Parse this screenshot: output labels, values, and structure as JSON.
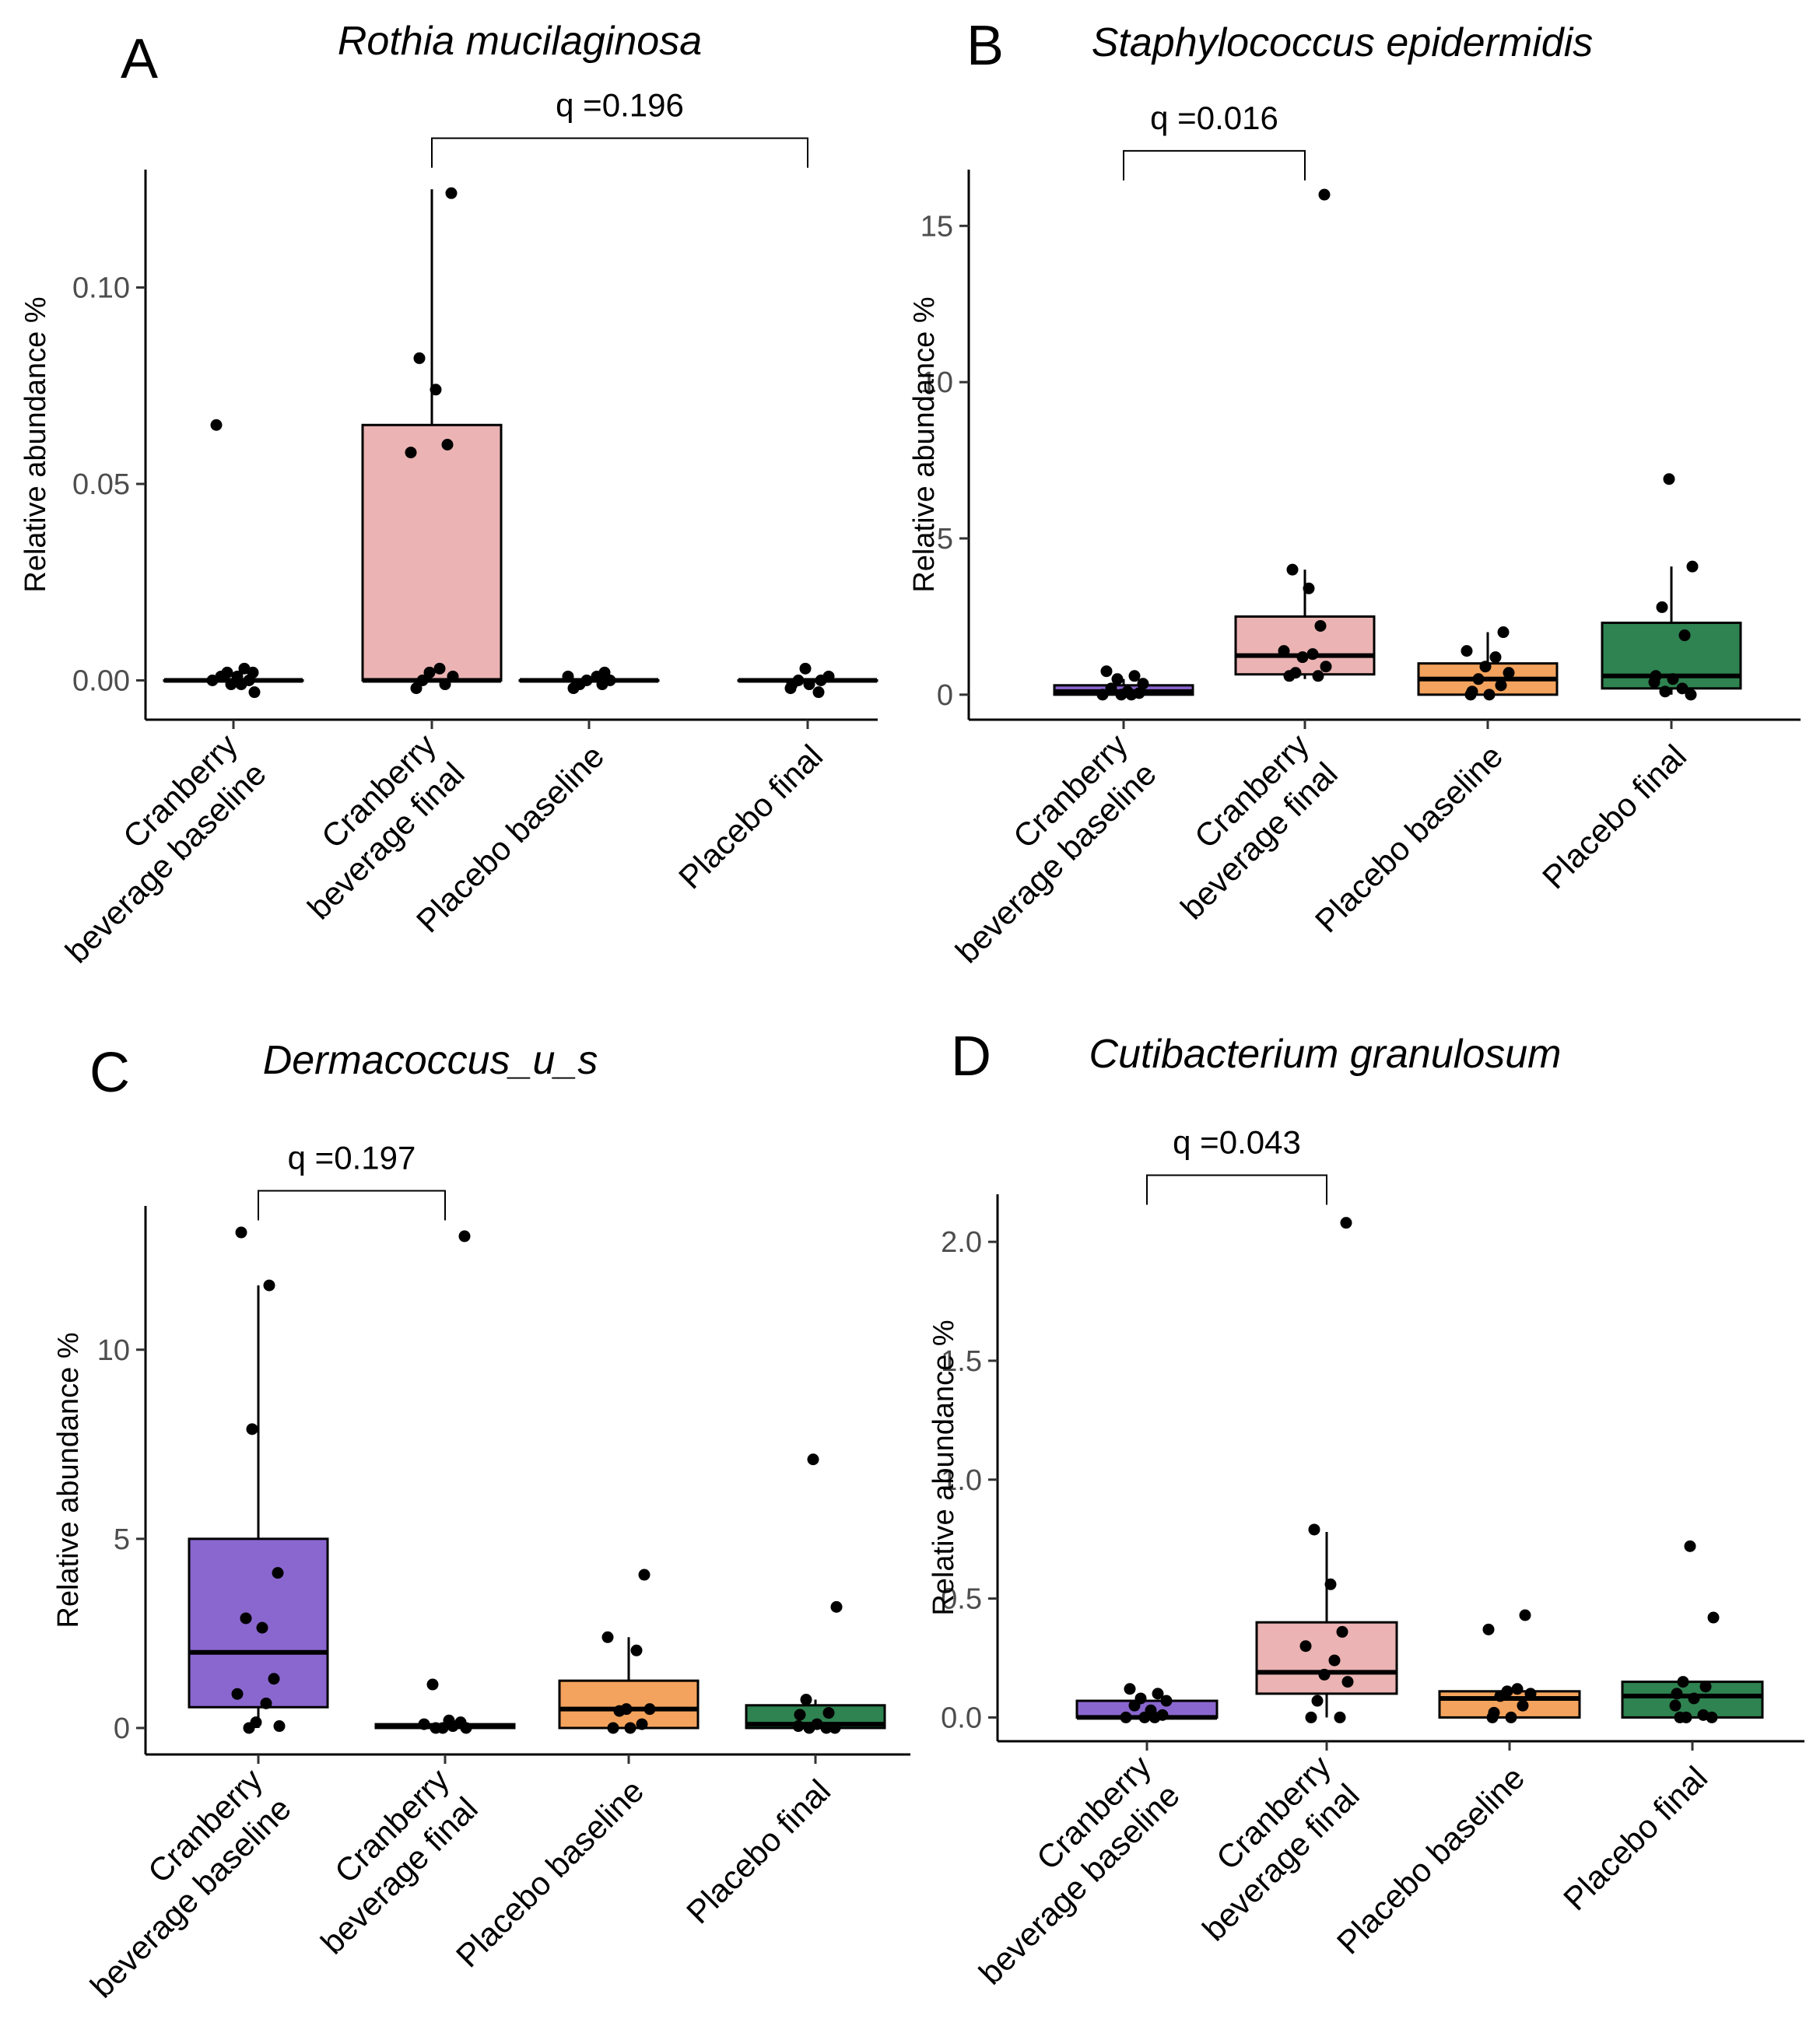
{
  "colors": {
    "cranberry_baseline": "#8a67cf",
    "cranberry_final": "#ebb3b3",
    "placebo_baseline": "#f3a35d",
    "placebo_final": "#2e8350",
    "point": "#000000",
    "axis": "#000000"
  },
  "chart_data": [
    {
      "panel": "A",
      "type": "box",
      "title": "Rothia mucilaginosa",
      "ylabel": "Relative abundance %",
      "xlabel": "",
      "ylim": [
        -0.01,
        0.13
      ],
      "yticks": [
        0.0,
        0.05,
        0.1
      ],
      "ytick_labels": [
        "0.00",
        "0.05",
        "0.10"
      ],
      "categories": [
        [
          "Cranberry",
          "beverage baseline"
        ],
        [
          "Cranberry",
          "beverage final"
        ],
        [
          "Placebo baseline"
        ],
        [
          "Placebo final"
        ]
      ],
      "groups": [
        {
          "q1": 0.0,
          "median": 0.0,
          "q3": 0.0,
          "whisker_low": 0.0,
          "whisker_high": 0.0,
          "points": [
            0.065,
            0.003,
            0.002,
            0.002,
            0.001,
            0.001,
            0.0,
            0.0,
            -0.001,
            -0.001,
            -0.003
          ]
        },
        {
          "q1": 0.0,
          "median": 0.0,
          "q3": 0.065,
          "whisker_low": 0.0,
          "whisker_high": 0.125,
          "points": [
            0.124,
            0.082,
            0.074,
            0.06,
            0.058,
            0.003,
            0.002,
            0.001,
            0.0,
            -0.001,
            -0.002
          ]
        },
        {
          "q1": 0.0,
          "median": 0.0,
          "q3": 0.0,
          "whisker_low": 0.0,
          "whisker_high": 0.0,
          "points": [
            0.002,
            0.001,
            0.001,
            0.0,
            0.0,
            -0.001,
            -0.001,
            -0.002
          ]
        },
        {
          "q1": 0.0,
          "median": 0.0,
          "q3": 0.0,
          "whisker_low": 0.0,
          "whisker_high": 0.0,
          "points": [
            0.003,
            0.001,
            0.0,
            0.0,
            -0.001,
            -0.001,
            -0.002,
            -0.003
          ]
        }
      ],
      "comparison": {
        "from": 1,
        "to": 3,
        "label": "q =0.196",
        "y": 0.138
      }
    },
    {
      "panel": "B",
      "type": "box",
      "title": "Staphylococcus epidermidis",
      "ylabel": "Relative abundance %",
      "xlabel": "",
      "ylim": [
        -0.8,
        16.8
      ],
      "yticks": [
        0,
        5,
        10,
        15
      ],
      "ytick_labels": [
        "0",
        "5",
        "10",
        "15"
      ],
      "categories": [
        [
          "Cranberry",
          "beverage baseline"
        ],
        [
          "Cranberry",
          "beverage final"
        ],
        [
          "Placebo baseline"
        ],
        [
          "Placebo final"
        ]
      ],
      "groups": [
        {
          "q1": 0.0,
          "median": 0.1,
          "q3": 0.3,
          "whisker_low": 0.0,
          "whisker_high": 0.5,
          "points": [
            0.75,
            0.6,
            0.5,
            0.35,
            0.2,
            0.1,
            0.05,
            0.0,
            0.0,
            0.0
          ]
        },
        {
          "q1": 0.65,
          "median": 1.25,
          "q3": 2.5,
          "whisker_low": 0.5,
          "whisker_high": 4.0,
          "points": [
            16.0,
            4.0,
            3.4,
            2.2,
            1.4,
            1.3,
            1.2,
            0.9,
            0.7,
            0.6,
            0.6
          ]
        },
        {
          "q1": 0.0,
          "median": 0.5,
          "q3": 1.0,
          "whisker_low": 0.0,
          "whisker_high": 2.0,
          "points": [
            2.0,
            1.4,
            1.2,
            0.9,
            0.7,
            0.5,
            0.3,
            0.1,
            0.0,
            0.0
          ]
        },
        {
          "q1": 0.2,
          "median": 0.6,
          "q3": 2.3,
          "whisker_low": 0.0,
          "whisker_high": 4.1,
          "points": [
            6.9,
            4.1,
            2.8,
            1.9,
            0.6,
            0.5,
            0.4,
            0.2,
            0.1,
            0.0
          ]
        }
      ],
      "comparison": {
        "from": 0,
        "to": 1,
        "label": "q =0.016",
        "y": 17.4
      }
    },
    {
      "panel": "C",
      "type": "box",
      "title": "Dermacoccus_u_s",
      "ylabel": "Relative abundance %",
      "xlabel": "",
      "ylim": [
        -0.7,
        13.8
      ],
      "yticks": [
        0,
        5,
        10
      ],
      "ytick_labels": [
        "0",
        "5",
        "10"
      ],
      "categories": [
        [
          "Cranberry",
          "beverage baseline"
        ],
        [
          "Cranberry",
          "beverage final"
        ],
        [
          "Placebo baseline"
        ],
        [
          "Placebo final"
        ]
      ],
      "groups": [
        {
          "q1": 0.55,
          "median": 2.0,
          "q3": 5.0,
          "whisker_low": 0.0,
          "whisker_high": 11.7,
          "points": [
            13.1,
            11.7,
            7.9,
            4.1,
            2.9,
            2.65,
            1.3,
            0.9,
            0.65,
            0.15,
            0.05,
            0.0
          ]
        },
        {
          "q1": 0.0,
          "median": 0.05,
          "q3": 0.1,
          "whisker_low": 0.0,
          "whisker_high": 0.15,
          "points": [
            13.0,
            1.15,
            0.2,
            0.15,
            0.1,
            0.05,
            0.0,
            0.0,
            0.0
          ]
        },
        {
          "q1": 0.0,
          "median": 0.5,
          "q3": 1.25,
          "whisker_low": 0.0,
          "whisker_high": 2.4,
          "points": [
            4.05,
            2.4,
            2.05,
            0.5,
            0.5,
            0.45,
            0.1,
            0.0,
            0.0
          ]
        },
        {
          "q1": 0.0,
          "median": 0.1,
          "q3": 0.6,
          "whisker_low": 0.0,
          "whisker_high": 0.75,
          "points": [
            7.1,
            3.2,
            0.75,
            0.4,
            0.35,
            0.1,
            0.05,
            0.0,
            0.0,
            0.0
          ]
        }
      ],
      "comparison": {
        "from": 0,
        "to": 1,
        "label": "q =0.197",
        "y": 14.2
      }
    },
    {
      "panel": "D",
      "type": "box",
      "title": "Cutibacterium granulosum",
      "ylabel": "Relative abundance %",
      "xlabel": "",
      "ylim": [
        -0.1,
        2.2
      ],
      "yticks": [
        0.0,
        0.5,
        1.0,
        1.5,
        2.0
      ],
      "ytick_labels": [
        "0.0",
        "0.5",
        "1.0",
        "1.5",
        "2.0"
      ],
      "categories": [
        [
          "Cranberry",
          "beverage baseline"
        ],
        [
          "Cranberry",
          "beverage final"
        ],
        [
          "Placebo baseline"
        ],
        [
          "Placebo final"
        ]
      ],
      "groups": [
        {
          "q1": 0.0,
          "median": 0.0,
          "q3": 0.07,
          "whisker_low": 0.0,
          "whisker_high": 0.07,
          "points": [
            0.12,
            0.1,
            0.08,
            0.07,
            0.05,
            0.03,
            0.01,
            0.0,
            0.0,
            0.0
          ]
        },
        {
          "q1": 0.1,
          "median": 0.19,
          "q3": 0.4,
          "whisker_low": 0.0,
          "whisker_high": 0.78,
          "points": [
            2.08,
            0.79,
            0.56,
            0.36,
            0.3,
            0.24,
            0.18,
            0.15,
            0.07,
            0.0,
            0.0
          ]
        },
        {
          "q1": 0.0,
          "median": 0.08,
          "q3": 0.11,
          "whisker_low": 0.0,
          "whisker_high": 0.11,
          "points": [
            0.43,
            0.37,
            0.12,
            0.11,
            0.1,
            0.09,
            0.05,
            0.02,
            0.0,
            0.0
          ]
        },
        {
          "q1": 0.0,
          "median": 0.09,
          "q3": 0.15,
          "whisker_low": 0.0,
          "whisker_high": 0.15,
          "points": [
            0.72,
            0.42,
            0.15,
            0.13,
            0.1,
            0.08,
            0.05,
            0.01,
            0.0,
            0.0,
            0.0
          ]
        }
      ],
      "comparison": {
        "from": 0,
        "to": 1,
        "label": "q =0.043",
        "y": 2.28
      }
    }
  ]
}
